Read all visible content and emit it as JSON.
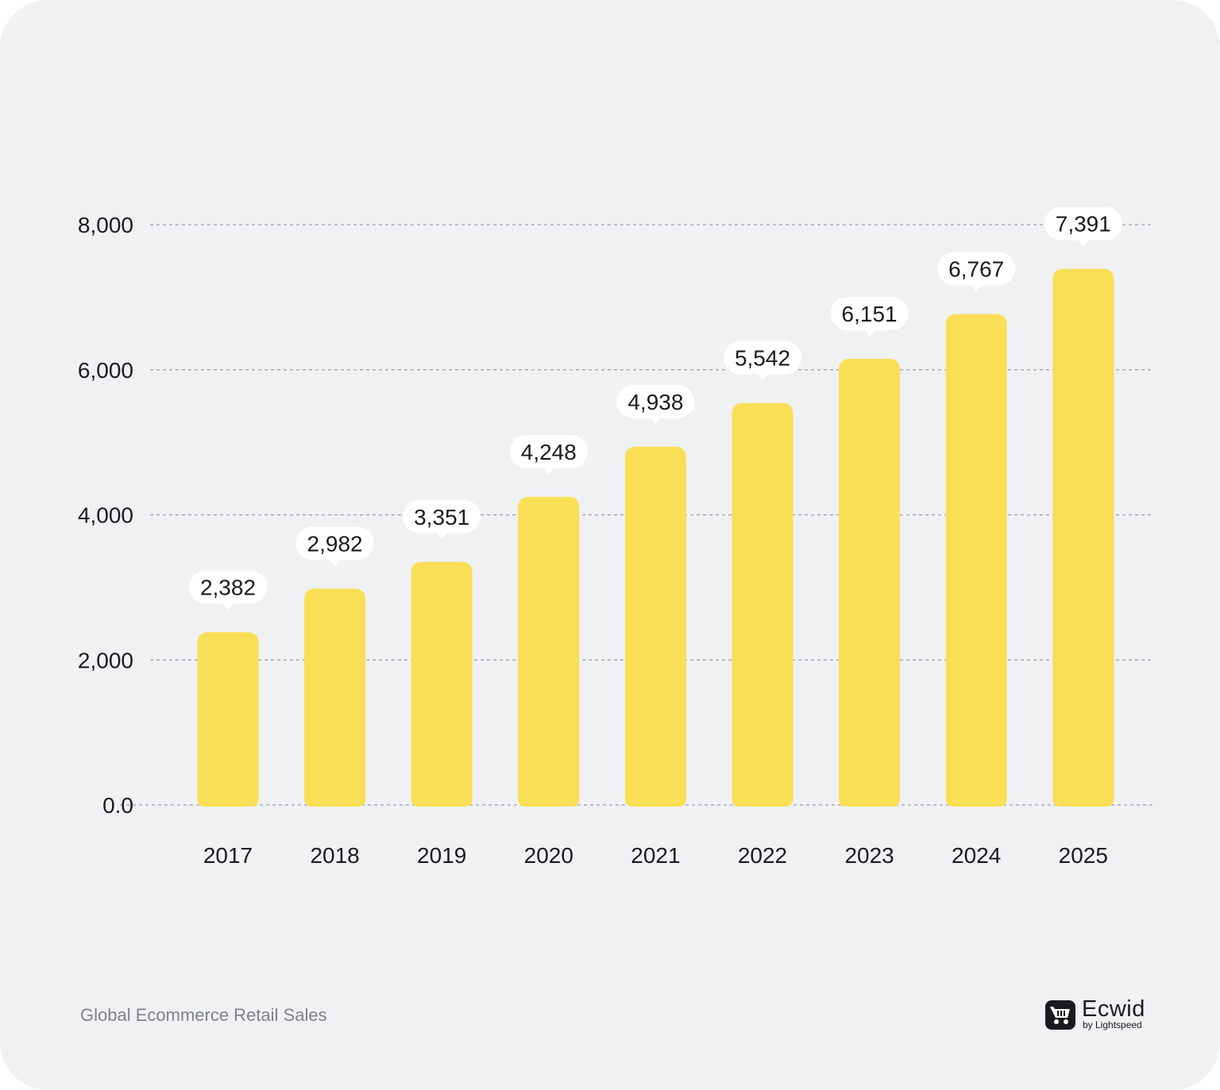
{
  "chart_data": {
    "type": "bar",
    "categories": [
      "2017",
      "2018",
      "2019",
      "2020",
      "2021",
      "2022",
      "2023",
      "2024",
      "2025"
    ],
    "values": [
      2382,
      2982,
      3351,
      4248,
      4938,
      5542,
      6151,
      6767,
      7391
    ],
    "value_labels": [
      "2,382",
      "2,982",
      "3,351",
      "4,248",
      "4,938",
      "5,542",
      "6,151",
      "6,767",
      "7,391"
    ],
    "title": "",
    "xlabel": "",
    "ylabel": "",
    "ylim": [
      0,
      8000
    ],
    "yticks": [
      0,
      2000,
      4000,
      6000,
      8000
    ],
    "ytick_labels": [
      "0.0",
      "2,000",
      "4,000",
      "6,000",
      "8,000"
    ],
    "grid": "dashed-horizontal",
    "legend": "none"
  },
  "colors": {
    "bar": "#f9df55",
    "background": "#f0f1f3",
    "grid": "#9a9da3",
    "label_bubble": "#ffffff",
    "text": "#1b1b1f",
    "caption": "#7d828b"
  },
  "caption": "Global Ecommerce Retail Sales",
  "brand": {
    "icon": "shopping-cart-icon",
    "name": "Ecwid",
    "sub": "by Lightspeed"
  }
}
